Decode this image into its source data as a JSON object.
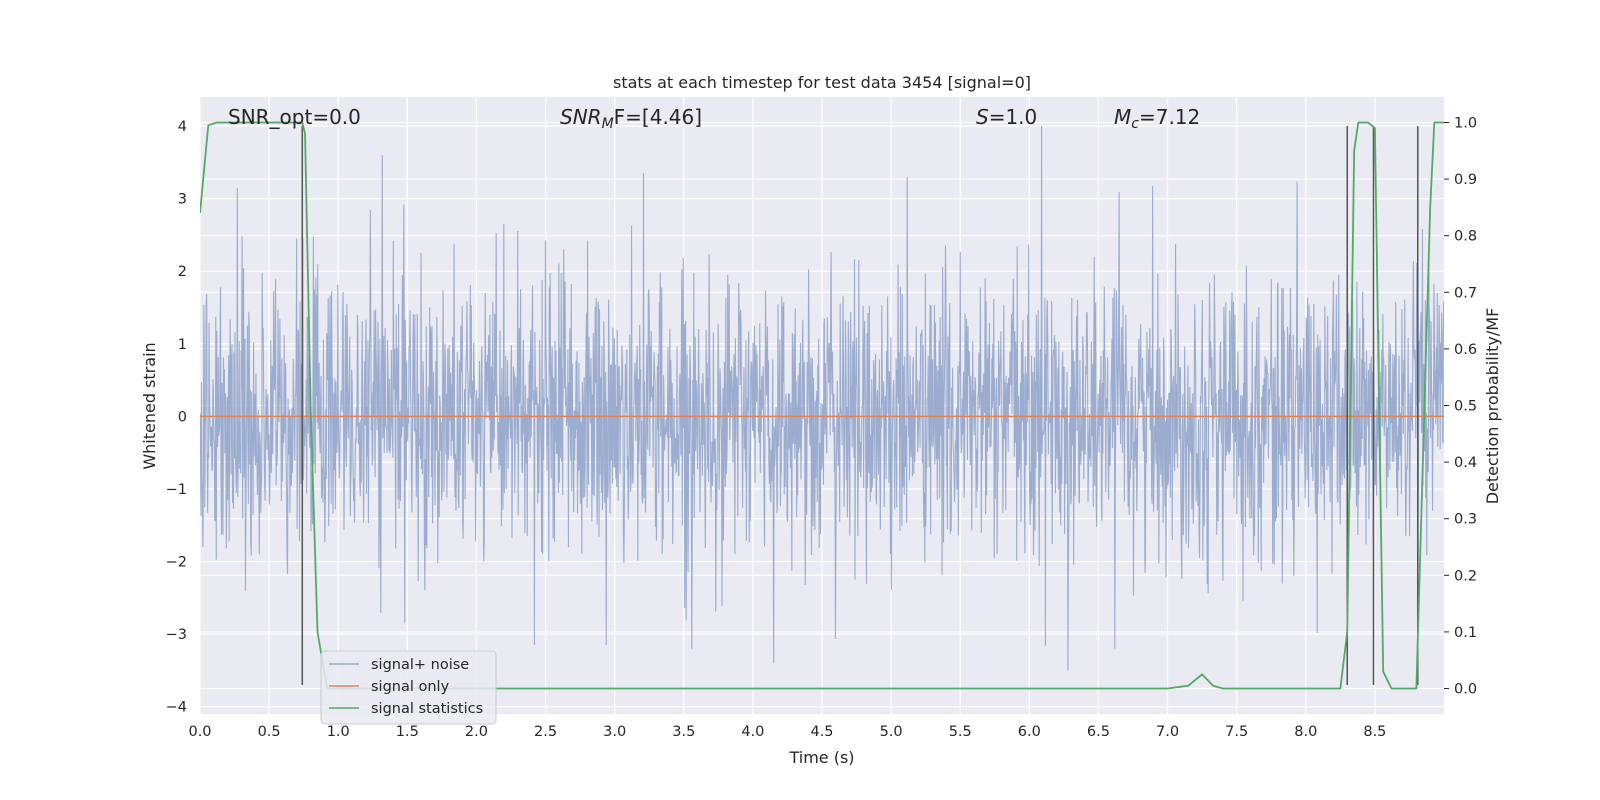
{
  "chart_data": {
    "type": "line",
    "title": "stats at each timestep for test data 3454 [signal=0]",
    "xlabel": "Time (s)",
    "ylabel_left": "Whitened strain",
    "ylabel_right": "Detection probability/MF",
    "xlim": [
      0.0,
      9.0
    ],
    "ylim_left": [
      -4.1,
      4.4
    ],
    "ylim_right": [
      -0.045,
      1.045
    ],
    "x_ticks": [
      "0.0",
      "0.5",
      "1.0",
      "1.5",
      "2.0",
      "2.5",
      "3.0",
      "3.5",
      "4.0",
      "4.5",
      "5.0",
      "5.5",
      "6.0",
      "6.5",
      "7.0",
      "7.5",
      "8.0",
      "8.5"
    ],
    "y_ticks_left": [
      "4",
      "3",
      "2",
      "1",
      "0",
      "−1",
      "−2",
      "−3",
      "−4"
    ],
    "y_ticks_right": [
      "1.0",
      "0.9",
      "0.8",
      "0.7",
      "0.6",
      "0.5",
      "0.4",
      "0.3",
      "0.2",
      "0.1",
      "0.0"
    ],
    "grid": true,
    "legend_placement": "lower-left",
    "colors": {
      "background": "#eaeaf2",
      "grid": "#ffffff",
      "noise": "#97a9cc",
      "signal_only": "#dd8452",
      "statistics": "#55a868",
      "vline": "#555555"
    },
    "annotations": {
      "snr_opt": "SNR_opt=0.0",
      "snr_mf_main": "SNR",
      "snr_mf_sub": "M",
      "snr_mf_rest": "F=[4.46]",
      "s_main": "S",
      "s_rest": "=1.0",
      "mc_main": "M",
      "mc_sub": "c",
      "mc_rest": "=7.12"
    },
    "series": [
      {
        "name": "signal+ noise",
        "axis": "left",
        "description": "whitened noise, approx. Gaussian, sigma ~1, peaks to about ±3.6",
        "peaks": [
          [
            0.27,
            3.15
          ],
          [
            0.7,
            2.45
          ],
          [
            1.32,
            3.6
          ],
          [
            3.21,
            3.35
          ],
          [
            6.09,
            4.0
          ],
          [
            4.15,
            -3.4
          ],
          [
            6.28,
            -3.5
          ],
          [
            6.62,
            -3.2
          ],
          [
            2.42,
            -3.15
          ],
          [
            2.94,
            -3.15
          ]
        ]
      },
      {
        "name": "signal only",
        "axis": "left",
        "x": [
          0.0,
          9.0
        ],
        "y": [
          0.0,
          0.0
        ]
      },
      {
        "name": "signal statistics",
        "axis": "right",
        "x": [
          0.0,
          0.06,
          0.12,
          0.2,
          0.4,
          0.6,
          0.72,
          0.74,
          0.76,
          0.8,
          0.85,
          0.92,
          1.0,
          2.0,
          3.0,
          4.0,
          5.0,
          6.0,
          7.0,
          7.15,
          7.25,
          7.33,
          7.4,
          8.0,
          8.25,
          8.3,
          8.35,
          8.38,
          8.45,
          8.5,
          8.56,
          8.62,
          8.7,
          8.8,
          8.9,
          8.93,
          9.0
        ],
        "y": [
          0.84,
          0.995,
          1.0,
          1.0,
          1.0,
          1.0,
          1.0,
          1.0,
          0.98,
          0.5,
          0.1,
          0.0,
          0.0,
          0.0,
          0.0,
          0.0,
          0.0,
          0.0,
          0.0,
          0.005,
          0.025,
          0.005,
          0.0,
          0.0,
          0.0,
          0.1,
          0.95,
          1.0,
          1.0,
          0.99,
          0.03,
          0.0,
          0.0,
          0.0,
          0.85,
          1.0,
          1.0
        ]
      }
    ],
    "vlines": [
      {
        "x": 0.74,
        "ymin": -3.7,
        "ymax": 4.0
      },
      {
        "x": 8.3,
        "ymin": -3.7,
        "ymax": 4.0
      },
      {
        "x": 8.49,
        "ymin": -3.7,
        "ymax": 4.0
      },
      {
        "x": 8.81,
        "ymin": -3.7,
        "ymax": 4.0
      }
    ]
  }
}
